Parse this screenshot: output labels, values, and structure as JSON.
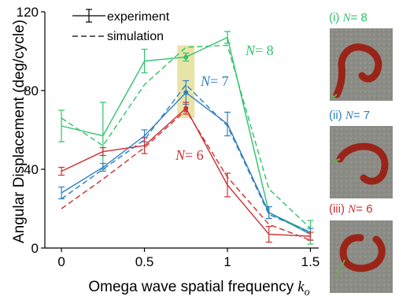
{
  "chart_data": {
    "type": "line",
    "xlabel": "Omega wave spatial frequency",
    "xlabel_symbol": "k",
    "xlabel_subscript": "o",
    "ylabel": "Angular Displacement (deg/cycle)",
    "xlim": [
      -0.1,
      1.55
    ],
    "ylim": [
      0,
      120
    ],
    "x_ticks": [
      0,
      0.5,
      1,
      1.5
    ],
    "x_tick_labels": [
      "0",
      "0.5",
      "1",
      "1.5"
    ],
    "y_ticks": [
      0,
      40,
      80,
      120
    ],
    "y_tick_labels": [
      "0",
      "40",
      "80",
      "120"
    ],
    "legend": [
      {
        "label": "experiment",
        "style": "solid-errorbar"
      },
      {
        "label": "simulation",
        "style": "dashed"
      }
    ],
    "legend_position": "top-left",
    "highlight_x": 0.75,
    "highlight_color": "#e8e4a8",
    "x": [
      0,
      0.25,
      0.5,
      0.75,
      1,
      1.25,
      1.5
    ],
    "series": [
      {
        "name": "N = 8",
        "symbol": "N",
        "value": "= 8",
        "color": "#2ec36a",
        "experiment": [
          62,
          57,
          95,
          97,
          107,
          18,
          8
        ],
        "error": [
          8,
          17,
          6,
          2,
          3,
          3,
          6
        ],
        "simulation": [
          66,
          52,
          83,
          102,
          103,
          30,
          10
        ]
      },
      {
        "name": "N = 7",
        "symbol": "N",
        "value": "= 7",
        "color": "#2f7fc1",
        "experiment": [
          28,
          41,
          57,
          79,
          63,
          18,
          7
        ],
        "error": [
          3,
          2,
          3,
          6,
          6,
          3,
          3
        ],
        "simulation": [
          25,
          40,
          55,
          83,
          62,
          17,
          8
        ]
      },
      {
        "name": "N = 6",
        "symbol": "N",
        "value": "= 6",
        "color": "#cf2e30",
        "experiment": [
          39,
          49,
          52,
          71,
          32,
          7,
          6
        ],
        "error": [
          2,
          2,
          4,
          3,
          6,
          4,
          2
        ],
        "simulation": [
          20,
          35,
          51,
          70,
          36,
          12,
          4
        ]
      }
    ]
  },
  "panels": [
    {
      "prefix": "(i) ",
      "symbol": "N",
      "value": "= 8",
      "color": "#2ec36a"
    },
    {
      "prefix": "(ii) ",
      "symbol": "N",
      "value": "= 7",
      "color": "#2f7fc1"
    },
    {
      "prefix": "(iii) ",
      "symbol": "N",
      "value": "= 6",
      "color": "#cf2e30"
    }
  ]
}
